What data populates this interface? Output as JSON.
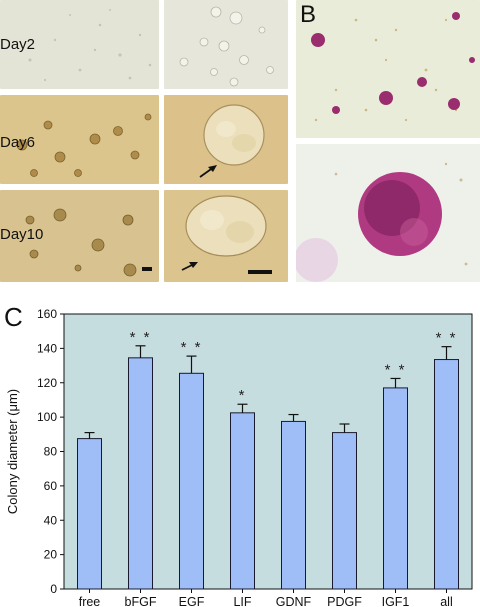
{
  "figure": {
    "panels": [
      "A",
      "B",
      "C"
    ],
    "day_labels": [
      "Day2",
      "Day6",
      "Day10"
    ]
  },
  "colors": {
    "plot_bg": "#c6dde0",
    "bar_fill": "#9fbdf7",
    "bar_stroke": "#1a1a2e",
    "day2_bg": "#e4e4d6",
    "day6_bg": "#dcc58c",
    "day10_bg": "#d8c290",
    "stain": "#9a2d6e"
  },
  "chart_data": {
    "type": "bar",
    "categories": [
      "free",
      "bFGF",
      "EGF",
      "LIF",
      "GDNF",
      "PDGF",
      "IGF1",
      "all"
    ],
    "values": [
      87.5,
      134.5,
      125.5,
      102.5,
      97.5,
      91,
      117,
      133.5
    ],
    "errors": [
      3.5,
      7,
      10,
      5,
      4,
      5,
      5.5,
      7.5
    ],
    "significance": [
      "",
      "**",
      "**",
      "*",
      "",
      "",
      "**",
      "**"
    ],
    "ylabel": "Colony diameter (μm)",
    "xlabel": "",
    "title": "",
    "ylim": [
      0,
      160
    ],
    "yticks": [
      0,
      20,
      40,
      60,
      80,
      100,
      120,
      140,
      160
    ],
    "grid": false
  }
}
